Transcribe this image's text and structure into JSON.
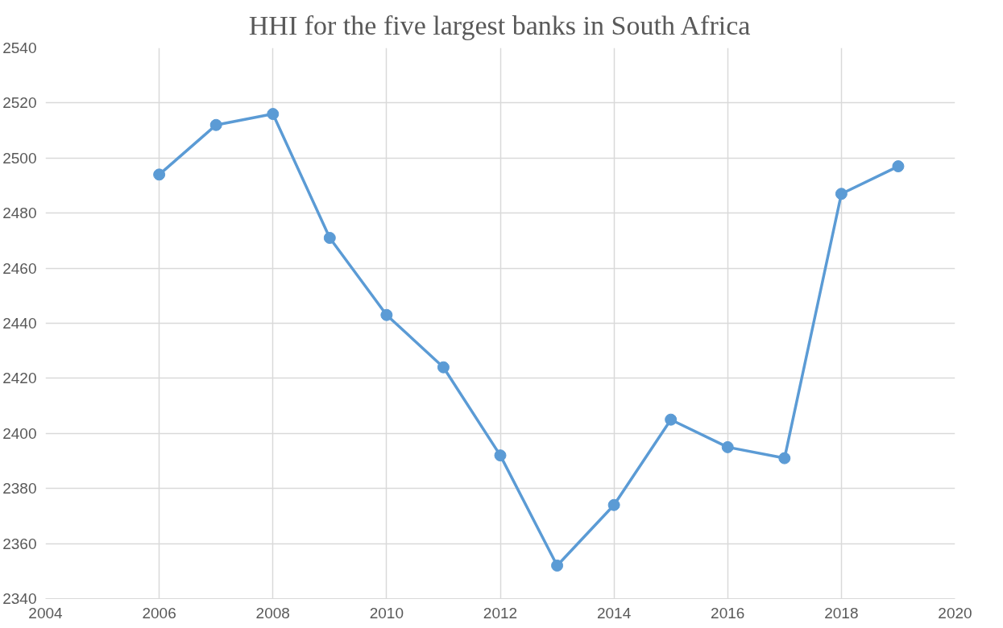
{
  "chart_data": {
    "type": "line",
    "title": "HHI for the five largest banks in South Africa",
    "x": [
      2006,
      2007,
      2008,
      2009,
      2010,
      2011,
      2012,
      2013,
      2014,
      2015,
      2016,
      2017,
      2018,
      2019
    ],
    "series": [
      {
        "color": "#5b9bd5",
        "values": [
          2494,
          2512,
          2516,
          2471,
          2443,
          2424,
          2392,
          2352,
          2374,
          2405,
          2395,
          2391,
          2487,
          2497
        ]
      }
    ],
    "xlim": [
      2004,
      2020
    ],
    "xticks": [
      2004,
      2006,
      2008,
      2010,
      2012,
      2014,
      2016,
      2018,
      2020
    ],
    "ylim": [
      2340,
      2540
    ],
    "yticks": [
      2340,
      2360,
      2380,
      2400,
      2420,
      2440,
      2460,
      2480,
      2500,
      2520,
      2540
    ],
    "grid": true,
    "marker": "circle",
    "line_style": "solid"
  }
}
